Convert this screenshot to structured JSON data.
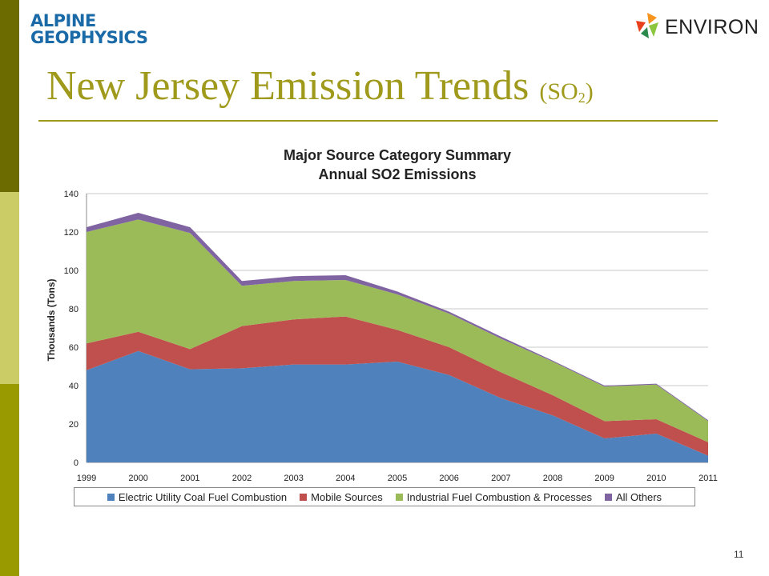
{
  "slide": {
    "title_main": "New Jersey Emission Trends",
    "title_open": "(SO",
    "title_sub": "2",
    "title_close": ")",
    "page_number": "11"
  },
  "logos": {
    "alpine_line1": "ALPINE",
    "alpine_line2": "GEOPHYSICS",
    "environ": "ENVIRON"
  },
  "colors": {
    "sidebar_dark": "#6b6b00",
    "sidebar_light": "#cccc66",
    "sidebar_mid": "#999900",
    "title": "#a09a1c"
  },
  "chart_data": {
    "type": "area",
    "stacked": true,
    "title": "Major Source Category Summary",
    "subtitle": "Annual SO2 Emissions",
    "xlabel": "",
    "ylabel": "Thousands (Tons)",
    "ylim": [
      0,
      140
    ],
    "yticks": [
      0,
      20,
      40,
      60,
      80,
      100,
      120,
      140
    ],
    "grid": true,
    "legend_position": "bottom",
    "categories": [
      "1999",
      "2000",
      "2001",
      "2002",
      "2003",
      "2004",
      "2005",
      "2006",
      "2007",
      "2008",
      "2009",
      "2010",
      "2011"
    ],
    "series": [
      {
        "name": "Electric Utility Coal Fuel Combustion",
        "color": "#4f81bd",
        "values": [
          48,
          58,
          48.5,
          49,
          51,
          51,
          52.5,
          45.5,
          33.5,
          24.5,
          12.5,
          15,
          3.5
        ]
      },
      {
        "name": "Mobile Sources",
        "color": "#c0504d",
        "values": [
          14,
          10,
          10.5,
          22,
          23.5,
          25,
          16.5,
          14.5,
          13.5,
          10.5,
          9,
          7.5,
          7
        ]
      },
      {
        "name": "Industrial Fuel Combustion & Processes",
        "color": "#9bbb59",
        "values": [
          58,
          58.5,
          60.5,
          21,
          20,
          19,
          18.5,
          17.5,
          17.5,
          17.5,
          18,
          18,
          11
        ]
      },
      {
        "name": "All Others",
        "color": "#8064a2",
        "values": [
          2.5,
          3.5,
          3,
          2.5,
          2.5,
          2.5,
          1.5,
          1,
          1,
          0.5,
          0.5,
          0.5,
          0.5
        ]
      }
    ]
  }
}
